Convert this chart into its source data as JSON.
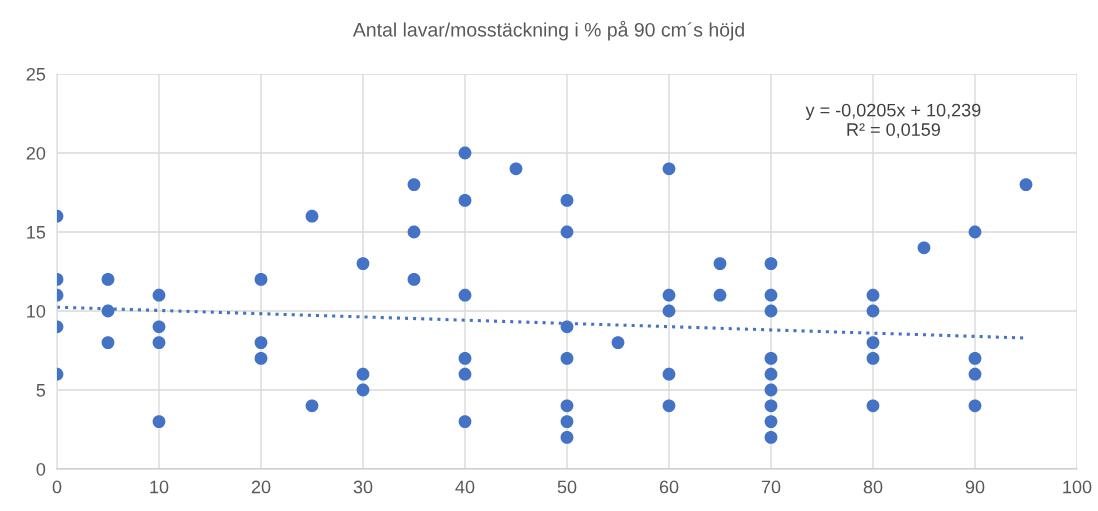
{
  "chart_data": {
    "type": "scatter",
    "title": "Antal lavar/mosstäckning i % på 90 cm´s höjd",
    "series": [
      {
        "color": "#4472c4",
        "marker": "circle",
        "x": [
          0,
          0,
          0,
          0,
          0,
          5,
          5,
          5,
          10,
          10,
          10,
          10,
          20,
          20,
          20,
          25,
          25,
          30,
          30,
          30,
          35,
          35,
          35,
          40,
          40,
          40,
          40,
          40,
          40,
          45,
          50,
          50,
          50,
          50,
          50,
          50,
          50,
          55,
          60,
          60,
          60,
          60,
          60,
          65,
          65,
          70,
          70,
          70,
          70,
          70,
          70,
          70,
          70,
          70,
          80,
          80,
          80,
          80,
          80,
          85,
          90,
          90,
          90,
          90,
          95
        ],
        "values": [
          16,
          12,
          11,
          9,
          6,
          12,
          10,
          8,
          11,
          9,
          8,
          3,
          12,
          8,
          7,
          16,
          4,
          13,
          6,
          5,
          18,
          15,
          12,
          20,
          17,
          11,
          7,
          6,
          3,
          19,
          17,
          15,
          9,
          7,
          4,
          3,
          2,
          8,
          19,
          11,
          10,
          6,
          4,
          13,
          11,
          13,
          11,
          10,
          7,
          6,
          5,
          4,
          3,
          2,
          11,
          10,
          8,
          7,
          4,
          14,
          15,
          7,
          6,
          4,
          18
        ]
      },
      {
        "type": "line",
        "color": "#4472c4",
        "line_style": "dotted",
        "x": [
          0,
          95
        ],
        "values": [
          10.24,
          8.29
        ]
      }
    ],
    "annotations": [
      "y = -0,0205x + 10,239\nR² = 0,0159"
    ],
    "xlim": [
      0,
      100
    ],
    "xticks": [
      0,
      10,
      20,
      30,
      40,
      50,
      60,
      70,
      80,
      90,
      100
    ],
    "ylim": [
      0,
      25
    ],
    "yticks": [
      0,
      5,
      10,
      15,
      20,
      25
    ],
    "grid": true,
    "legend": false
  }
}
